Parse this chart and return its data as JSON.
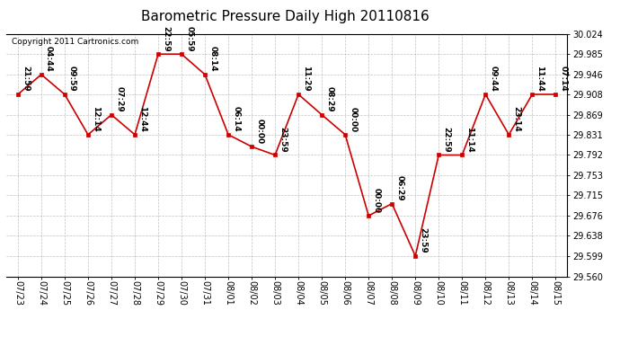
{
  "title": "Barometric Pressure Daily High 20110816",
  "copyright": "Copyright 2011 Cartronics.com",
  "x_labels": [
    "07/23",
    "07/24",
    "07/25",
    "07/26",
    "07/27",
    "07/28",
    "07/29",
    "07/30",
    "07/31",
    "08/01",
    "08/02",
    "08/03",
    "08/04",
    "08/05",
    "08/06",
    "08/07",
    "08/08",
    "08/09",
    "08/10",
    "08/11",
    "08/12",
    "08/13",
    "08/14",
    "08/15"
  ],
  "y_values": [
    29.908,
    29.946,
    29.908,
    29.831,
    29.869,
    29.831,
    29.985,
    29.985,
    29.946,
    29.831,
    29.808,
    29.792,
    29.908,
    29.869,
    29.831,
    29.676,
    29.699,
    29.599,
    29.792,
    29.792,
    29.908,
    29.831,
    29.908,
    29.908
  ],
  "point_labels": [
    "21:59",
    "04:44",
    "09:59",
    "12:14",
    "07:29",
    "12:44",
    "22:59",
    "05:59",
    "08:14",
    "06:14",
    "00:00",
    "23:59",
    "11:29",
    "08:29",
    "00:00",
    "00:00",
    "06:29",
    "23:59",
    "22:59",
    "11:14",
    "09:44",
    "23:14",
    "11:44",
    "07:14"
  ],
  "ylim_min": 29.56,
  "ylim_max": 30.024,
  "y_ticks": [
    29.56,
    29.599,
    29.638,
    29.676,
    29.715,
    29.753,
    29.792,
    29.831,
    29.869,
    29.908,
    29.946,
    29.985,
    30.024
  ],
  "line_color": "#cc0000",
  "marker_color": "#cc0000",
  "bg_color": "#ffffff",
  "grid_color": "#999999",
  "title_fontsize": 11,
  "label_fontsize": 7,
  "point_label_fontsize": 6.5,
  "copyright_fontsize": 6.5
}
